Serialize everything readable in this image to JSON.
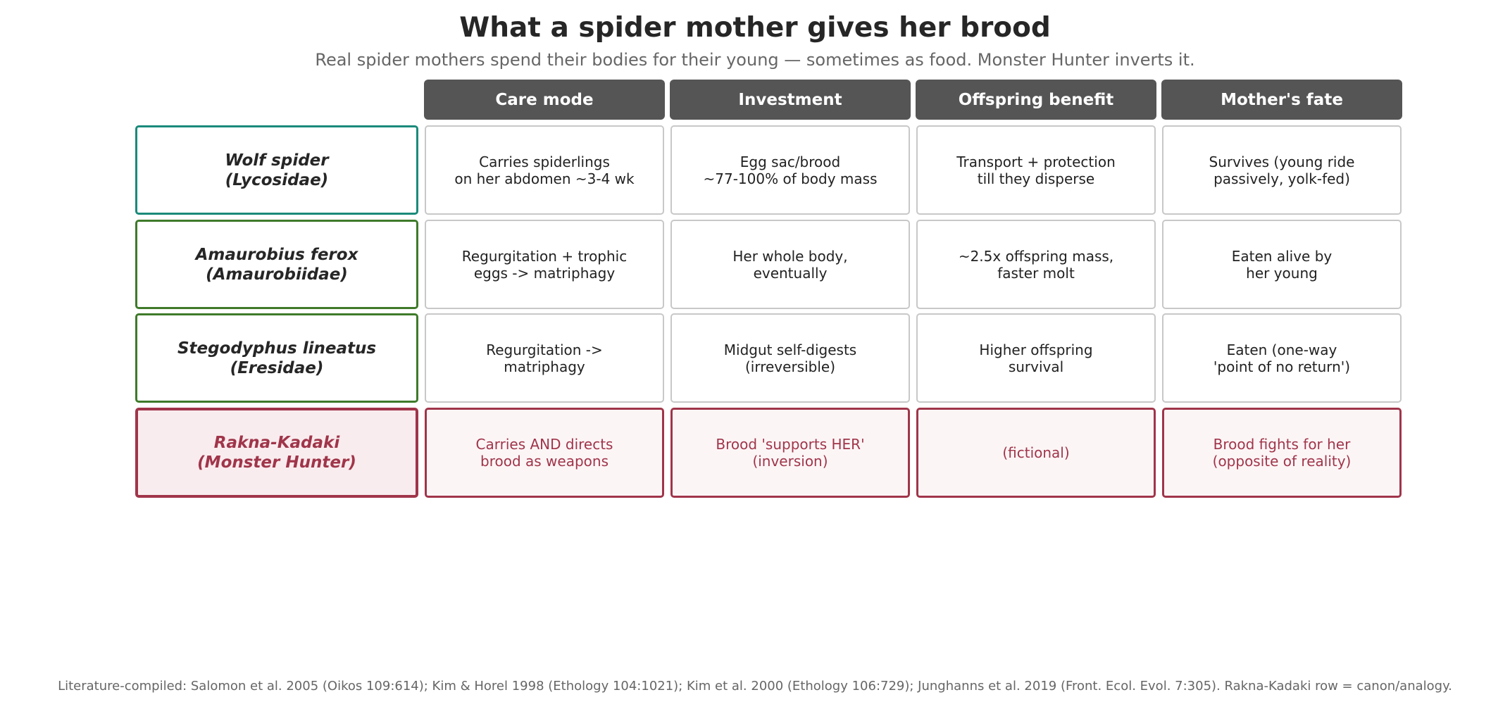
{
  "title": "What a spider mother gives her brood",
  "subtitle": "Real spider mothers spend their bodies for their young — sometimes as food. Monster Hunter inverts it.",
  "columns": [
    "Care mode",
    "Investment",
    "Offspring benefit",
    "Mother's fate"
  ],
  "colors": {
    "header_bg": "#555555",
    "wolf_border": "#1a8a7a",
    "amaurobius_border": "#3f7a2a",
    "stegodyphus_border": "#3f7a2a",
    "fictional_accent": "#a0354a"
  },
  "rows": [
    {
      "label": "Wolf spider\n(Lycosidae)",
      "cells": [
        "Carries spiderlings\non her abdomen ~3-4 wk",
        "Egg sac/brood\n~77-100% of body mass",
        "Transport + protection\ntill they disperse",
        "Survives (young ride\npassively, yolk-fed)"
      ]
    },
    {
      "label": "Amaurobius ferox\n(Amaurobiidae)",
      "cells": [
        "Regurgitation + trophic\neggs -> matriphagy",
        "Her whole body,\neventually",
        "~2.5x offspring mass,\nfaster molt",
        "Eaten alive by\nher young"
      ]
    },
    {
      "label": "Stegodyphus lineatus\n(Eresidae)",
      "cells": [
        "Regurgitation ->\nmatriphagy",
        "Midgut self-digests\n(irreversible)",
        "Higher offspring\nsurvival",
        "Eaten (one-way\n'point of no return')"
      ]
    },
    {
      "label": "Rakna-Kadaki\n(Monster Hunter)",
      "cells": [
        "Carries AND directs\nbrood as weapons",
        "Brood 'supports HER'\n(inversion)",
        "(fictional)",
        "Brood fights for her\n(opposite of reality)"
      ]
    }
  ],
  "footnote": "Literature-compiled: Salomon et al. 2005 (Oikos 109:614); Kim & Horel 1998 (Ethology 104:1021); Kim et al. 2000 (Ethology 106:729); Junghanns et al. 2019 (Front. Ecol. Evol. 7:305). Rakna-Kadaki row = canon/analogy."
}
